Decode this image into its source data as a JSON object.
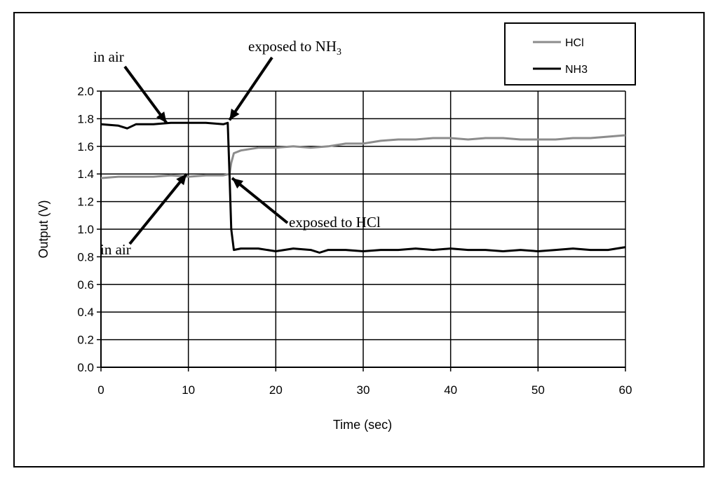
{
  "chart_data": {
    "type": "line",
    "title": "",
    "xlabel": "Time (sec)",
    "ylabel": "Output (V)",
    "xlim": [
      0,
      60
    ],
    "ylim": [
      0.0,
      2.0
    ],
    "x_ticks": [
      "0",
      "10",
      "20",
      "30",
      "40",
      "50",
      "60"
    ],
    "y_ticks": [
      "0.0",
      "0.2",
      "0.4",
      "0.6",
      "0.8",
      "1.0",
      "1.2",
      "1.4",
      "1.6",
      "1.8",
      "2.0"
    ],
    "grid": true,
    "legend_position": "top-right",
    "series": [
      {
        "name": "HCl",
        "color": "#8c8c8c",
        "points": [
          [
            0,
            1.37
          ],
          [
            2,
            1.38
          ],
          [
            4,
            1.38
          ],
          [
            6,
            1.38
          ],
          [
            8,
            1.39
          ],
          [
            10,
            1.38
          ],
          [
            12,
            1.39
          ],
          [
            14,
            1.39
          ],
          [
            14.7,
            1.4
          ],
          [
            14.9,
            1.48
          ],
          [
            15.2,
            1.55
          ],
          [
            16,
            1.57
          ],
          [
            18,
            1.59
          ],
          [
            20,
            1.59
          ],
          [
            22,
            1.6
          ],
          [
            24,
            1.59
          ],
          [
            26,
            1.6
          ],
          [
            28,
            1.62
          ],
          [
            30,
            1.62
          ],
          [
            32,
            1.64
          ],
          [
            34,
            1.65
          ],
          [
            36,
            1.65
          ],
          [
            38,
            1.66
          ],
          [
            40,
            1.66
          ],
          [
            42,
            1.65
          ],
          [
            44,
            1.66
          ],
          [
            46,
            1.66
          ],
          [
            48,
            1.65
          ],
          [
            50,
            1.65
          ],
          [
            52,
            1.65
          ],
          [
            54,
            1.66
          ],
          [
            56,
            1.66
          ],
          [
            58,
            1.67
          ],
          [
            60,
            1.68
          ]
        ]
      },
      {
        "name": "NH3",
        "color": "#000000",
        "points": [
          [
            0,
            1.76
          ],
          [
            2,
            1.75
          ],
          [
            3,
            1.73
          ],
          [
            4,
            1.76
          ],
          [
            6,
            1.76
          ],
          [
            8,
            1.77
          ],
          [
            10,
            1.77
          ],
          [
            12,
            1.77
          ],
          [
            14,
            1.76
          ],
          [
            14.5,
            1.77
          ],
          [
            14.7,
            1.4
          ],
          [
            14.9,
            1.0
          ],
          [
            15.2,
            0.85
          ],
          [
            16,
            0.86
          ],
          [
            18,
            0.86
          ],
          [
            20,
            0.84
          ],
          [
            22,
            0.86
          ],
          [
            24,
            0.85
          ],
          [
            25,
            0.83
          ],
          [
            26,
            0.85
          ],
          [
            28,
            0.85
          ],
          [
            30,
            0.84
          ],
          [
            32,
            0.85
          ],
          [
            34,
            0.85
          ],
          [
            36,
            0.86
          ],
          [
            38,
            0.85
          ],
          [
            40,
            0.86
          ],
          [
            42,
            0.85
          ],
          [
            44,
            0.85
          ],
          [
            46,
            0.84
          ],
          [
            48,
            0.85
          ],
          [
            50,
            0.84
          ],
          [
            52,
            0.85
          ],
          [
            54,
            0.86
          ],
          [
            56,
            0.85
          ],
          [
            58,
            0.85
          ],
          [
            60,
            0.87
          ]
        ]
      }
    ],
    "annotations": [
      {
        "text": "in air",
        "sub": "",
        "target": [
          7.5,
          1.77
        ]
      },
      {
        "text": "exposed to NH",
        "sub": "3",
        "target": [
          14.7,
          1.79
        ]
      },
      {
        "text": "exposed to HCl",
        "sub": "",
        "target": [
          15.0,
          1.37
        ]
      },
      {
        "text": "in air",
        "sub": "",
        "target": [
          9.8,
          1.4
        ]
      }
    ]
  }
}
